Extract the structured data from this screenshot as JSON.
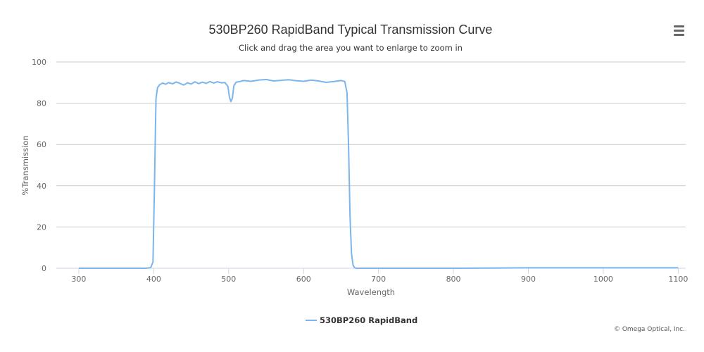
{
  "chart_data": {
    "type": "line",
    "title": "530BP260 RapidBand Typical Transmission Curve",
    "subtitle": "Click and drag the area you want to enlarge to zoom in",
    "xlabel": "Wavelength",
    "ylabel": "%Transmission",
    "xlim": [
      270,
      1110
    ],
    "ylim": [
      0,
      100
    ],
    "x_ticks": [
      300,
      400,
      500,
      600,
      700,
      800,
      900,
      1000,
      1100
    ],
    "y_ticks": [
      0,
      20,
      40,
      60,
      80,
      100
    ],
    "grid": "horizontal",
    "legend_position": "bottom-center",
    "series": [
      {
        "name": "530BP260 RapidBand",
        "color": "#7cb5ec",
        "x": [
          300,
          390,
          396,
          399,
          401,
          403,
          405,
          408,
          412,
          416,
          420,
          425,
          430,
          435,
          440,
          445,
          450,
          455,
          460,
          465,
          470,
          475,
          480,
          485,
          490,
          495,
          499,
          501,
          503,
          505,
          507,
          510,
          515,
          520,
          530,
          540,
          550,
          560,
          570,
          580,
          590,
          600,
          610,
          620,
          630,
          640,
          650,
          655,
          658,
          660,
          662,
          664,
          666,
          668,
          670,
          680,
          700,
          750,
          800,
          850,
          900,
          950,
          1000,
          1050,
          1100
        ],
        "y": [
          0,
          0,
          0.3,
          3,
          40,
          82,
          87.5,
          89,
          89.8,
          89.2,
          90,
          89.4,
          90.3,
          89.6,
          88.8,
          89.9,
          89.3,
          90.4,
          89.5,
          90.2,
          89.6,
          90.5,
          89.8,
          90.4,
          89.9,
          90,
          88.2,
          83,
          80.8,
          82.5,
          88.5,
          90.2,
          90.5,
          91,
          90.6,
          91.2,
          91.5,
          90.8,
          91.1,
          91.4,
          90.9,
          90.6,
          91.2,
          90.8,
          90.1,
          90.5,
          91,
          90.5,
          85,
          60,
          25,
          7,
          1.5,
          0.3,
          0,
          0,
          0,
          0,
          0,
          0.1,
          0.2,
          0.2,
          0.2,
          0.2,
          0.2
        ]
      }
    ]
  },
  "credits": "© Omega Optical, Inc.",
  "menu": {
    "icon": "hamburger-menu-icon"
  }
}
